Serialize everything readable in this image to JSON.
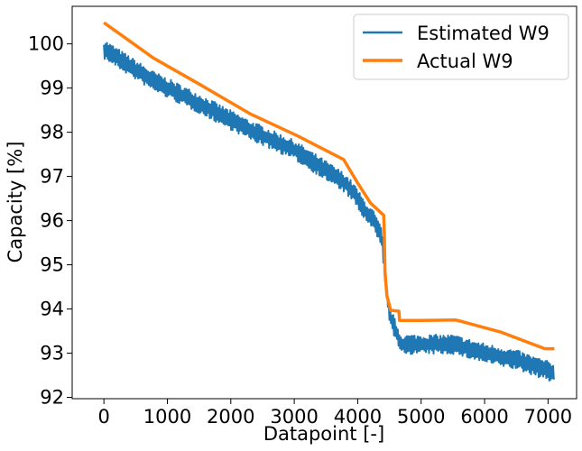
{
  "chart_data": {
    "type": "line",
    "title": "",
    "xlabel": "Datapoint [-]",
    "ylabel": "Capacity [%]",
    "xlim": [
      -500,
      7450
    ],
    "ylim": [
      91.97,
      100.85
    ],
    "xticks": [
      0,
      1000,
      2000,
      3000,
      4000,
      5000,
      6000,
      7000
    ],
    "yticks": [
      92,
      93,
      94,
      95,
      96,
      97,
      98,
      99,
      100
    ],
    "legend_position": "top-right",
    "series": [
      {
        "name": "Estimated W9",
        "color": "#1f77b4",
        "noise_band": 0.22,
        "points": [
          [
            0,
            99.88
          ],
          [
            750,
            99.18
          ],
          [
            1500,
            98.65
          ],
          [
            2300,
            98.05
          ],
          [
            3000,
            97.6
          ],
          [
            3800,
            96.85
          ],
          [
            3950,
            96.6
          ],
          [
            4100,
            96.25
          ],
          [
            4250,
            96.0
          ],
          [
            4380,
            95.6
          ],
          [
            4420,
            95.0
          ],
          [
            4460,
            94.3
          ],
          [
            4520,
            93.8
          ],
          [
            4600,
            93.5
          ],
          [
            4680,
            93.2
          ],
          [
            5000,
            93.2
          ],
          [
            5500,
            93.2
          ],
          [
            6000,
            93.0
          ],
          [
            6500,
            92.85
          ],
          [
            7100,
            92.55
          ]
        ]
      },
      {
        "name": "Actual W9",
        "color": "#ff7f0e",
        "points": [
          [
            0,
            100.48
          ],
          [
            780,
            99.68
          ],
          [
            1550,
            99.05
          ],
          [
            2300,
            98.42
          ],
          [
            3050,
            97.92
          ],
          [
            3780,
            97.38
          ],
          [
            4000,
            96.85
          ],
          [
            4200,
            96.4
          ],
          [
            4410,
            96.12
          ],
          [
            4420,
            95.7
          ],
          [
            4430,
            94.85
          ],
          [
            4460,
            94.3
          ],
          [
            4520,
            93.97
          ],
          [
            4650,
            93.95
          ],
          [
            4660,
            93.74
          ],
          [
            5000,
            93.74
          ],
          [
            5550,
            93.75
          ],
          [
            6250,
            93.48
          ],
          [
            6950,
            93.1
          ],
          [
            7100,
            93.1
          ]
        ]
      }
    ]
  }
}
